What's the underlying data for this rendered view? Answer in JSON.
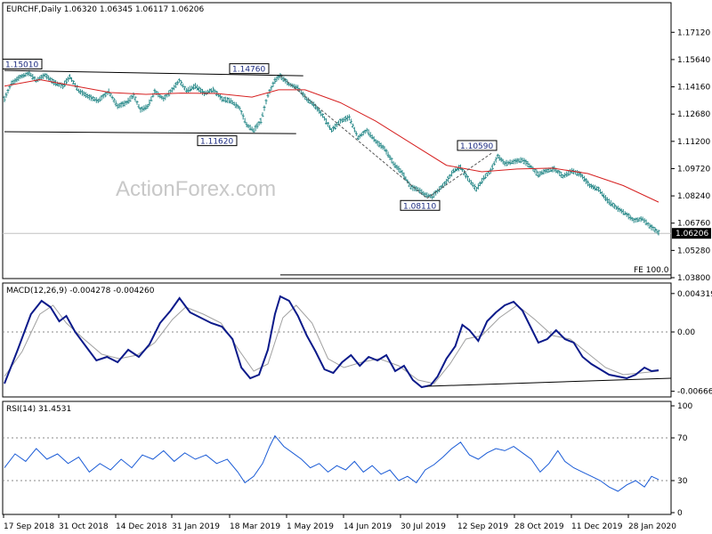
{
  "chart_data": [
    {
      "type": "ohlc",
      "title": "EURCHF,Daily  1.06320 1.06345 1.06117 1.06206",
      "last_price_label": "1.06206",
      "ylim": [
        1.038,
        1.181
      ],
      "y_ticks": [
        "1.17120",
        "1.15640",
        "1.14160",
        "1.12680",
        "1.11200",
        "1.09720",
        "1.08240",
        "1.06760",
        "1.05280",
        "1.03800"
      ],
      "price_path": [
        [
          0,
          1.135
        ],
        [
          8,
          1.1435
        ],
        [
          18,
          1.147
        ],
        [
          28,
          1.149
        ],
        [
          36,
          1.145
        ],
        [
          46,
          1.148
        ],
        [
          56,
          1.144
        ],
        [
          66,
          1.142
        ],
        [
          74,
          1.147
        ],
        [
          84,
          1.1395
        ],
        [
          96,
          1.136
        ],
        [
          106,
          1.134
        ],
        [
          118,
          1.139
        ],
        [
          128,
          1.131
        ],
        [
          138,
          1.133
        ],
        [
          146,
          1.137
        ],
        [
          154,
          1.129
        ],
        [
          162,
          1.131
        ],
        [
          170,
          1.139
        ],
        [
          180,
          1.135
        ],
        [
          190,
          1.14
        ],
        [
          198,
          1.145
        ],
        [
          206,
          1.1395
        ],
        [
          216,
          1.142
        ],
        [
          226,
          1.138
        ],
        [
          236,
          1.14
        ],
        [
          246,
          1.135
        ],
        [
          256,
          1.134
        ],
        [
          266,
          1.13
        ],
        [
          274,
          1.121
        ],
        [
          282,
          1.118
        ],
        [
          290,
          1.123
        ],
        [
          298,
          1.137
        ],
        [
          306,
          1.145
        ],
        [
          312,
          1.1476
        ],
        [
          322,
          1.143
        ],
        [
          332,
          1.141
        ],
        [
          342,
          1.135
        ],
        [
          350,
          1.132
        ],
        [
          360,
          1.126
        ],
        [
          370,
          1.118
        ],
        [
          380,
          1.123
        ],
        [
          390,
          1.125
        ],
        [
          400,
          1.114
        ],
        [
          410,
          1.118
        ],
        [
          420,
          1.112
        ],
        [
          430,
          1.108
        ],
        [
          440,
          1.1
        ],
        [
          450,
          1.095
        ],
        [
          460,
          1.087
        ],
        [
          468,
          1.086
        ],
        [
          476,
          1.083
        ],
        [
          484,
          1.082
        ],
        [
          492,
          1.086
        ],
        [
          500,
          1.09
        ],
        [
          508,
          1.096
        ],
        [
          516,
          1.098
        ],
        [
          524,
          1.092
        ],
        [
          534,
          1.086
        ],
        [
          542,
          1.092
        ],
        [
          550,
          1.096
        ],
        [
          558,
          1.104
        ],
        [
          566,
          1.1
        ],
        [
          576,
          1.101
        ],
        [
          586,
          1.102
        ],
        [
          596,
          1.098
        ],
        [
          604,
          1.094
        ],
        [
          612,
          1.096
        ],
        [
          622,
          1.097
        ],
        [
          632,
          1.093
        ],
        [
          642,
          1.096
        ],
        [
          652,
          1.094
        ],
        [
          662,
          1.088
        ],
        [
          672,
          1.086
        ],
        [
          682,
          1.08
        ],
        [
          692,
          1.076
        ],
        [
          702,
          1.073
        ],
        [
          712,
          1.069
        ],
        [
          722,
          1.07
        ],
        [
          730,
          1.066
        ],
        [
          740,
          1.0625
        ]
      ],
      "moving_average_path": [
        [
          0,
          1.142
        ],
        [
          40,
          1.1455
        ],
        [
          80,
          1.142
        ],
        [
          120,
          1.1385
        ],
        [
          160,
          1.1375
        ],
        [
          200,
          1.1382
        ],
        [
          240,
          1.138
        ],
        [
          280,
          1.136
        ],
        [
          310,
          1.14
        ],
        [
          340,
          1.14
        ],
        [
          380,
          1.133
        ],
        [
          420,
          1.123
        ],
        [
          460,
          1.111
        ],
        [
          500,
          1.099
        ],
        [
          540,
          1.0955
        ],
        [
          580,
          1.097
        ],
        [
          620,
          1.0975
        ],
        [
          660,
          1.0945
        ],
        [
          700,
          1.088
        ],
        [
          740,
          1.079
        ]
      ],
      "annotations": [
        {
          "label": "1.15010",
          "value": 1.1501
        },
        {
          "label": "1.14760",
          "value": 1.1476
        },
        {
          "label": "1.11620",
          "value": 1.1162
        },
        {
          "label": "1.10590",
          "value": 1.1059
        },
        {
          "label": "1.08110",
          "value": 1.0811
        }
      ],
      "fibo_label": "FE 100.0",
      "fibo_level": 1.0395,
      "watermark": "ActionForex.com"
    },
    {
      "type": "line",
      "title": "MACD(12,26,9) -0.004278 -0.004260",
      "ylim": [
        -0.0071,
        0.0051
      ],
      "y_ticks": [
        "0.004319",
        "0.00",
        "-0.006663"
      ],
      "macd_path": [
        [
          0,
          -0.0058
        ],
        [
          15,
          -0.002
        ],
        [
          30,
          0.002
        ],
        [
          42,
          0.0035
        ],
        [
          52,
          0.0028
        ],
        [
          62,
          0.0012
        ],
        [
          70,
          0.0018
        ],
        [
          80,
          0.0
        ],
        [
          92,
          -0.0016
        ],
        [
          104,
          -0.0032
        ],
        [
          116,
          -0.0028
        ],
        [
          128,
          -0.0034
        ],
        [
          140,
          -0.002
        ],
        [
          152,
          -0.0028
        ],
        [
          164,
          -0.0014
        ],
        [
          176,
          0.001
        ],
        [
          188,
          0.0024
        ],
        [
          198,
          0.0038
        ],
        [
          210,
          0.0022
        ],
        [
          222,
          0.0016
        ],
        [
          234,
          0.001
        ],
        [
          246,
          0.0006
        ],
        [
          258,
          -0.0008
        ],
        [
          268,
          -0.004
        ],
        [
          278,
          -0.0052
        ],
        [
          288,
          -0.0048
        ],
        [
          298,
          -0.002
        ],
        [
          306,
          0.002
        ],
        [
          312,
          0.004
        ],
        [
          322,
          0.0035
        ],
        [
          332,
          0.0018
        ],
        [
          342,
          -0.0004
        ],
        [
          352,
          -0.0022
        ],
        [
          362,
          -0.0042
        ],
        [
          372,
          -0.0046
        ],
        [
          382,
          -0.0034
        ],
        [
          392,
          -0.0026
        ],
        [
          402,
          -0.0038
        ],
        [
          412,
          -0.0028
        ],
        [
          422,
          -0.0032
        ],
        [
          432,
          -0.0026
        ],
        [
          442,
          -0.0044
        ],
        [
          452,
          -0.0038
        ],
        [
          462,
          -0.0054
        ],
        [
          472,
          -0.0062
        ],
        [
          482,
          -0.006
        ],
        [
          490,
          -0.005
        ],
        [
          500,
          -0.003
        ],
        [
          510,
          -0.0016
        ],
        [
          518,
          0.0008
        ],
        [
          526,
          0.0002
        ],
        [
          536,
          -0.001
        ],
        [
          546,
          0.0012
        ],
        [
          556,
          0.0022
        ],
        [
          566,
          0.003
        ],
        [
          576,
          0.0034
        ],
        [
          586,
          0.0024
        ],
        [
          596,
          0.0004
        ],
        [
          604,
          -0.0012
        ],
        [
          614,
          -0.0008
        ],
        [
          624,
          0.0002
        ],
        [
          634,
          -0.0008
        ],
        [
          644,
          -0.0012
        ],
        [
          654,
          -0.0028
        ],
        [
          664,
          -0.0036
        ],
        [
          674,
          -0.0042
        ],
        [
          684,
          -0.0048
        ],
        [
          694,
          -0.005
        ],
        [
          704,
          -0.0052
        ],
        [
          714,
          -0.0048
        ],
        [
          724,
          -0.004
        ],
        [
          732,
          -0.0044
        ],
        [
          740,
          -0.0043
        ]
      ],
      "signal_path": [
        [
          0,
          -0.005
        ],
        [
          20,
          -0.0022
        ],
        [
          40,
          0.002
        ],
        [
          55,
          0.003
        ],
        [
          70,
          0.001
        ],
        [
          90,
          -0.0008
        ],
        [
          110,
          -0.0025
        ],
        [
          130,
          -0.003
        ],
        [
          150,
          -0.0026
        ],
        [
          170,
          -0.0012
        ],
        [
          190,
          0.0014
        ],
        [
          205,
          0.0028
        ],
        [
          225,
          0.002
        ],
        [
          245,
          0.001
        ],
        [
          265,
          -0.002
        ],
        [
          282,
          -0.0044
        ],
        [
          298,
          -0.0036
        ],
        [
          315,
          0.0016
        ],
        [
          330,
          0.003
        ],
        [
          348,
          0.001
        ],
        [
          366,
          -0.003
        ],
        [
          384,
          -0.004
        ],
        [
          404,
          -0.0034
        ],
        [
          424,
          -0.003
        ],
        [
          446,
          -0.0038
        ],
        [
          468,
          -0.0054
        ],
        [
          486,
          -0.0058
        ],
        [
          504,
          -0.0036
        ],
        [
          522,
          -0.0008
        ],
        [
          540,
          -0.0004
        ],
        [
          560,
          0.0016
        ],
        [
          580,
          0.003
        ],
        [
          600,
          0.0014
        ],
        [
          620,
          -0.0004
        ],
        [
          640,
          -0.0008
        ],
        [
          660,
          -0.0024
        ],
        [
          680,
          -0.004
        ],
        [
          700,
          -0.0048
        ],
        [
          720,
          -0.0046
        ],
        [
          740,
          -0.0044
        ]
      ],
      "trend_line": [
        [
          478,
          -0.0061
        ],
        [
          754,
          -0.0052
        ]
      ]
    },
    {
      "type": "line",
      "title": "RSI(14) 31.4531",
      "ylim": [
        0,
        100
      ],
      "y_ticks": [
        "100",
        "70",
        "30",
        "0"
      ],
      "levels": [
        70,
        30
      ],
      "rsi_path": [
        [
          0,
          42
        ],
        [
          12,
          55
        ],
        [
          24,
          48
        ],
        [
          36,
          60
        ],
        [
          48,
          50
        ],
        [
          60,
          55
        ],
        [
          72,
          46
        ],
        [
          84,
          52
        ],
        [
          96,
          38
        ],
        [
          108,
          46
        ],
        [
          120,
          40
        ],
        [
          132,
          50
        ],
        [
          144,
          42
        ],
        [
          156,
          54
        ],
        [
          168,
          50
        ],
        [
          180,
          58
        ],
        [
          192,
          48
        ],
        [
          204,
          56
        ],
        [
          216,
          50
        ],
        [
          228,
          54
        ],
        [
          240,
          46
        ],
        [
          252,
          50
        ],
        [
          264,
          38
        ],
        [
          272,
          28
        ],
        [
          282,
          34
        ],
        [
          292,
          46
        ],
        [
          300,
          62
        ],
        [
          306,
          72
        ],
        [
          316,
          62
        ],
        [
          326,
          56
        ],
        [
          336,
          50
        ],
        [
          346,
          42
        ],
        [
          356,
          46
        ],
        [
          366,
          38
        ],
        [
          376,
          44
        ],
        [
          386,
          40
        ],
        [
          396,
          48
        ],
        [
          406,
          38
        ],
        [
          416,
          44
        ],
        [
          426,
          36
        ],
        [
          436,
          40
        ],
        [
          446,
          30
        ],
        [
          456,
          34
        ],
        [
          466,
          28
        ],
        [
          476,
          40
        ],
        [
          486,
          45
        ],
        [
          496,
          52
        ],
        [
          506,
          60
        ],
        [
          516,
          66
        ],
        [
          526,
          54
        ],
        [
          536,
          50
        ],
        [
          546,
          56
        ],
        [
          556,
          60
        ],
        [
          566,
          58
        ],
        [
          576,
          62
        ],
        [
          586,
          56
        ],
        [
          596,
          50
        ],
        [
          606,
          38
        ],
        [
          616,
          46
        ],
        [
          626,
          58
        ],
        [
          634,
          48
        ],
        [
          644,
          42
        ],
        [
          654,
          38
        ],
        [
          664,
          34
        ],
        [
          674,
          30
        ],
        [
          684,
          24
        ],
        [
          694,
          20
        ],
        [
          704,
          26
        ],
        [
          714,
          30
        ],
        [
          724,
          24
        ],
        [
          732,
          34
        ],
        [
          740,
          31
        ]
      ],
      "x_labels": [
        "17 Sep 2018",
        "31 Oct 2018",
        "14 Dec 2018",
        "31 Jan 2019",
        "18 Mar 2019",
        "1 May 2019",
        "14 Jun 2019",
        "30 Jul 2019",
        "12 Sep 2019",
        "28 Oct 2019",
        "11 Dec 2019",
        "28 Jan 2020"
      ]
    }
  ]
}
